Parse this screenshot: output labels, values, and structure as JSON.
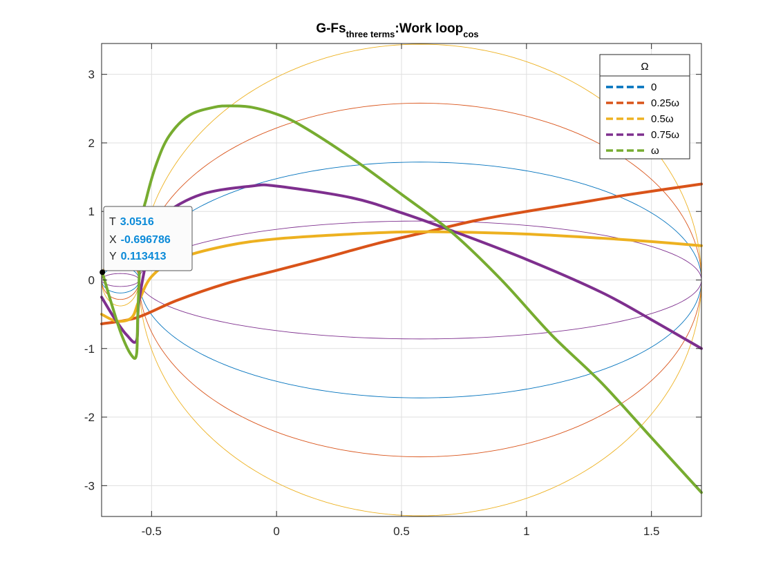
{
  "chart_data": {
    "type": "line",
    "title": {
      "main": "G-Fs",
      "sub1": "three terms",
      "mid": ":Work loop",
      "sub2": "cos"
    },
    "xlim": [
      -0.7,
      1.7
    ],
    "ylim": [
      -3.45,
      3.45
    ],
    "xticks": [
      -0.5,
      0,
      0.5,
      1,
      1.5
    ],
    "xtick_labels": [
      "-0.5",
      "0",
      "0.5",
      "1",
      "1.5"
    ],
    "yticks": [
      -3,
      -2,
      -1,
      0,
      1,
      2,
      3
    ],
    "ytick_labels": [
      "-3",
      "-2",
      "-1",
      "0",
      "1",
      "2",
      "3"
    ],
    "grid": true,
    "legend": {
      "title": "Ω",
      "placement": "top-right",
      "entries": [
        {
          "label": "0",
          "color": "#0072bd"
        },
        {
          "label": "0.25ω",
          "color": "#d95319"
        },
        {
          "label": "0.5ω",
          "color": "#edb120"
        },
        {
          "label": "0.75ω",
          "color": "#7e2f8e"
        },
        {
          "label": "ω",
          "color": "#77ac30"
        }
      ]
    },
    "thin_loops": [
      {
        "color": "#0072bd",
        "amplitude": 1.72
      },
      {
        "color": "#d95319",
        "amplitude": 2.58
      },
      {
        "color": "#edb120",
        "amplitude": 3.44
      },
      {
        "color": "#7e2f8e",
        "amplitude": 0.86
      }
    ],
    "series": [
      {
        "name": "0.25ω",
        "color": "#d95319",
        "x": [
          -0.7,
          -0.56,
          -0.4,
          -0.2,
          0.0,
          0.2,
          0.4,
          0.6,
          0.8,
          1.0,
          1.2,
          1.4,
          1.7
        ],
        "y": [
          -0.64,
          -0.55,
          -0.3,
          -0.05,
          0.14,
          0.33,
          0.53,
          0.7,
          0.87,
          1.0,
          1.12,
          1.24,
          1.4
        ]
      },
      {
        "name": "0.5ω",
        "color": "#edb120",
        "x": [
          -0.7,
          -0.64,
          -0.58,
          -0.55,
          -0.5,
          -0.4,
          -0.2,
          0.0,
          0.3,
          0.5,
          0.7,
          1.0,
          1.3,
          1.5,
          1.7
        ],
        "y": [
          -0.5,
          -0.6,
          -0.55,
          -0.3,
          0.05,
          0.3,
          0.5,
          0.6,
          0.67,
          0.7,
          0.7,
          0.67,
          0.61,
          0.56,
          0.5
        ]
      },
      {
        "name": "0.75ω",
        "color": "#7e2f8e",
        "x": [
          -0.7,
          -0.65,
          -0.6,
          -0.56,
          -0.55,
          -0.5,
          -0.45,
          -0.3,
          -0.1,
          0.0,
          0.3,
          0.5,
          0.7,
          1.0,
          1.3,
          1.5,
          1.7
        ],
        "y": [
          -0.25,
          -0.55,
          -0.8,
          -0.88,
          -0.3,
          0.6,
          0.95,
          1.25,
          1.37,
          1.37,
          1.2,
          0.98,
          0.72,
          0.3,
          -0.18,
          -0.58,
          -1.0
        ]
      },
      {
        "name": "ω",
        "color": "#77ac30",
        "x": [
          -0.697,
          -0.66,
          -0.62,
          -0.58,
          -0.56,
          -0.555,
          -0.54,
          -0.52,
          -0.48,
          -0.43,
          -0.35,
          -0.25,
          -0.18,
          -0.1,
          0.0,
          0.1,
          0.3,
          0.5,
          0.7,
          0.9,
          1.1,
          1.3,
          1.5,
          1.7
        ],
        "y": [
          0.11,
          -0.35,
          -0.8,
          -1.1,
          -1.08,
          -0.5,
          0.8,
          1.2,
          1.7,
          2.1,
          2.4,
          2.52,
          2.54,
          2.52,
          2.42,
          2.25,
          1.78,
          1.25,
          0.7,
          0.0,
          -0.8,
          -1.5,
          -2.3,
          -3.1
        ]
      }
    ],
    "datatip": {
      "x_data": -0.696786,
      "y_data": 0.113413,
      "rows": [
        {
          "key": "T",
          "value": "3.0516"
        },
        {
          "key": "X",
          "value": "-0.696786"
        },
        {
          "key": "Y",
          "value": "0.113413"
        }
      ]
    }
  }
}
